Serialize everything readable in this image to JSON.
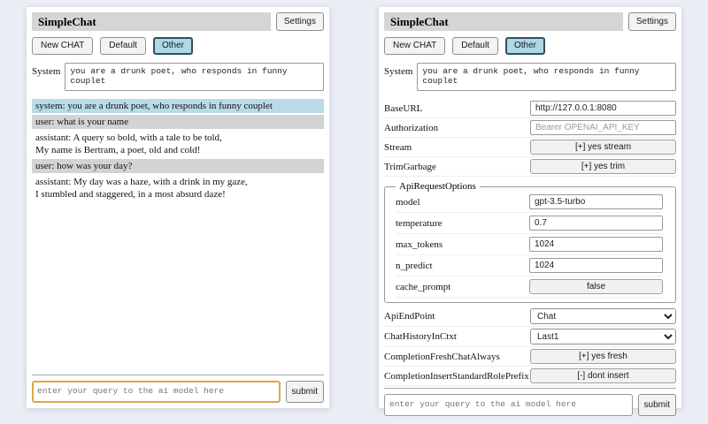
{
  "colors": {
    "page-bg": "#eceef5",
    "panel-bg": "#ffffff",
    "titlebar-bg": "#d5d5d5",
    "selected-session-bg": "#add8e6",
    "selected-session-border": "#2f4f5f",
    "system-msg-bg": "#b9dbe7",
    "user-msg-bg": "#d3d3d3",
    "focus-border": "#dca74c"
  },
  "left": {
    "title": "SimpleChat",
    "settings_button": "Settings",
    "sessions": [
      "New CHAT",
      "Default",
      "Other"
    ],
    "system_label": "System",
    "system_value": "you are a drunk poet, who responds in funny couplet",
    "messages": [
      {
        "role": "system",
        "text": "system: you are a drunk poet, who responds in funny couplet"
      },
      {
        "role": "user",
        "text": "user: what is your name"
      },
      {
        "role": "assistant",
        "text": "assistant: A query so bold, with a tale to be told,\nMy name is Bertram, a poet, old and cold!"
      },
      {
        "role": "user",
        "text": "user: how was your day?"
      },
      {
        "role": "assistant",
        "text": "assistant: My day was a haze, with a drink in my gaze,\nI stumbled and staggered, in a most absurd daze!"
      }
    ],
    "query_placeholder": "enter your query to the ai model here",
    "submit_label": "submit"
  },
  "right": {
    "title": "SimpleChat",
    "settings_button": "Settings",
    "sessions": [
      "New CHAT",
      "Default",
      "Other"
    ],
    "system_label": "System",
    "system_value": "you are a drunk poet, who responds in funny couplet",
    "settings": {
      "baseurl": {
        "label": "BaseURL",
        "value": "http://127.0.0.1:8080"
      },
      "authorization": {
        "label": "Authorization",
        "placeholder": "Bearer OPENAI_API_KEY"
      },
      "stream": {
        "label": "Stream",
        "button": "[+] yes stream"
      },
      "trimgarbage": {
        "label": "TrimGarbage",
        "button": "[+] yes trim"
      },
      "api_request_options": {
        "legend": "ApiRequestOptions",
        "model": {
          "label": "model",
          "value": "gpt-3.5-turbo"
        },
        "temperature": {
          "label": "temperature",
          "value": "0.7"
        },
        "max_tokens": {
          "label": "max_tokens",
          "value": "1024"
        },
        "n_predict": {
          "label": "n_predict",
          "value": "1024"
        },
        "cache_prompt": {
          "label": "cache_prompt",
          "button": "false"
        }
      },
      "api_endpoint": {
        "label": "ApiEndPoint",
        "value": "Chat"
      },
      "chat_history_in_ctxt": {
        "label": "ChatHistoryInCtxt",
        "value": "Last1"
      },
      "completion_fresh_chat_always": {
        "label": "CompletionFreshChatAlways",
        "button": "[+] yes fresh"
      },
      "completion_insert_standard_role_prefix": {
        "label": "CompletionInsertStandardRolePrefix",
        "button": "[-] dont insert"
      }
    },
    "query_placeholder": "enter your query to the ai model here",
    "submit_label": "submit"
  }
}
